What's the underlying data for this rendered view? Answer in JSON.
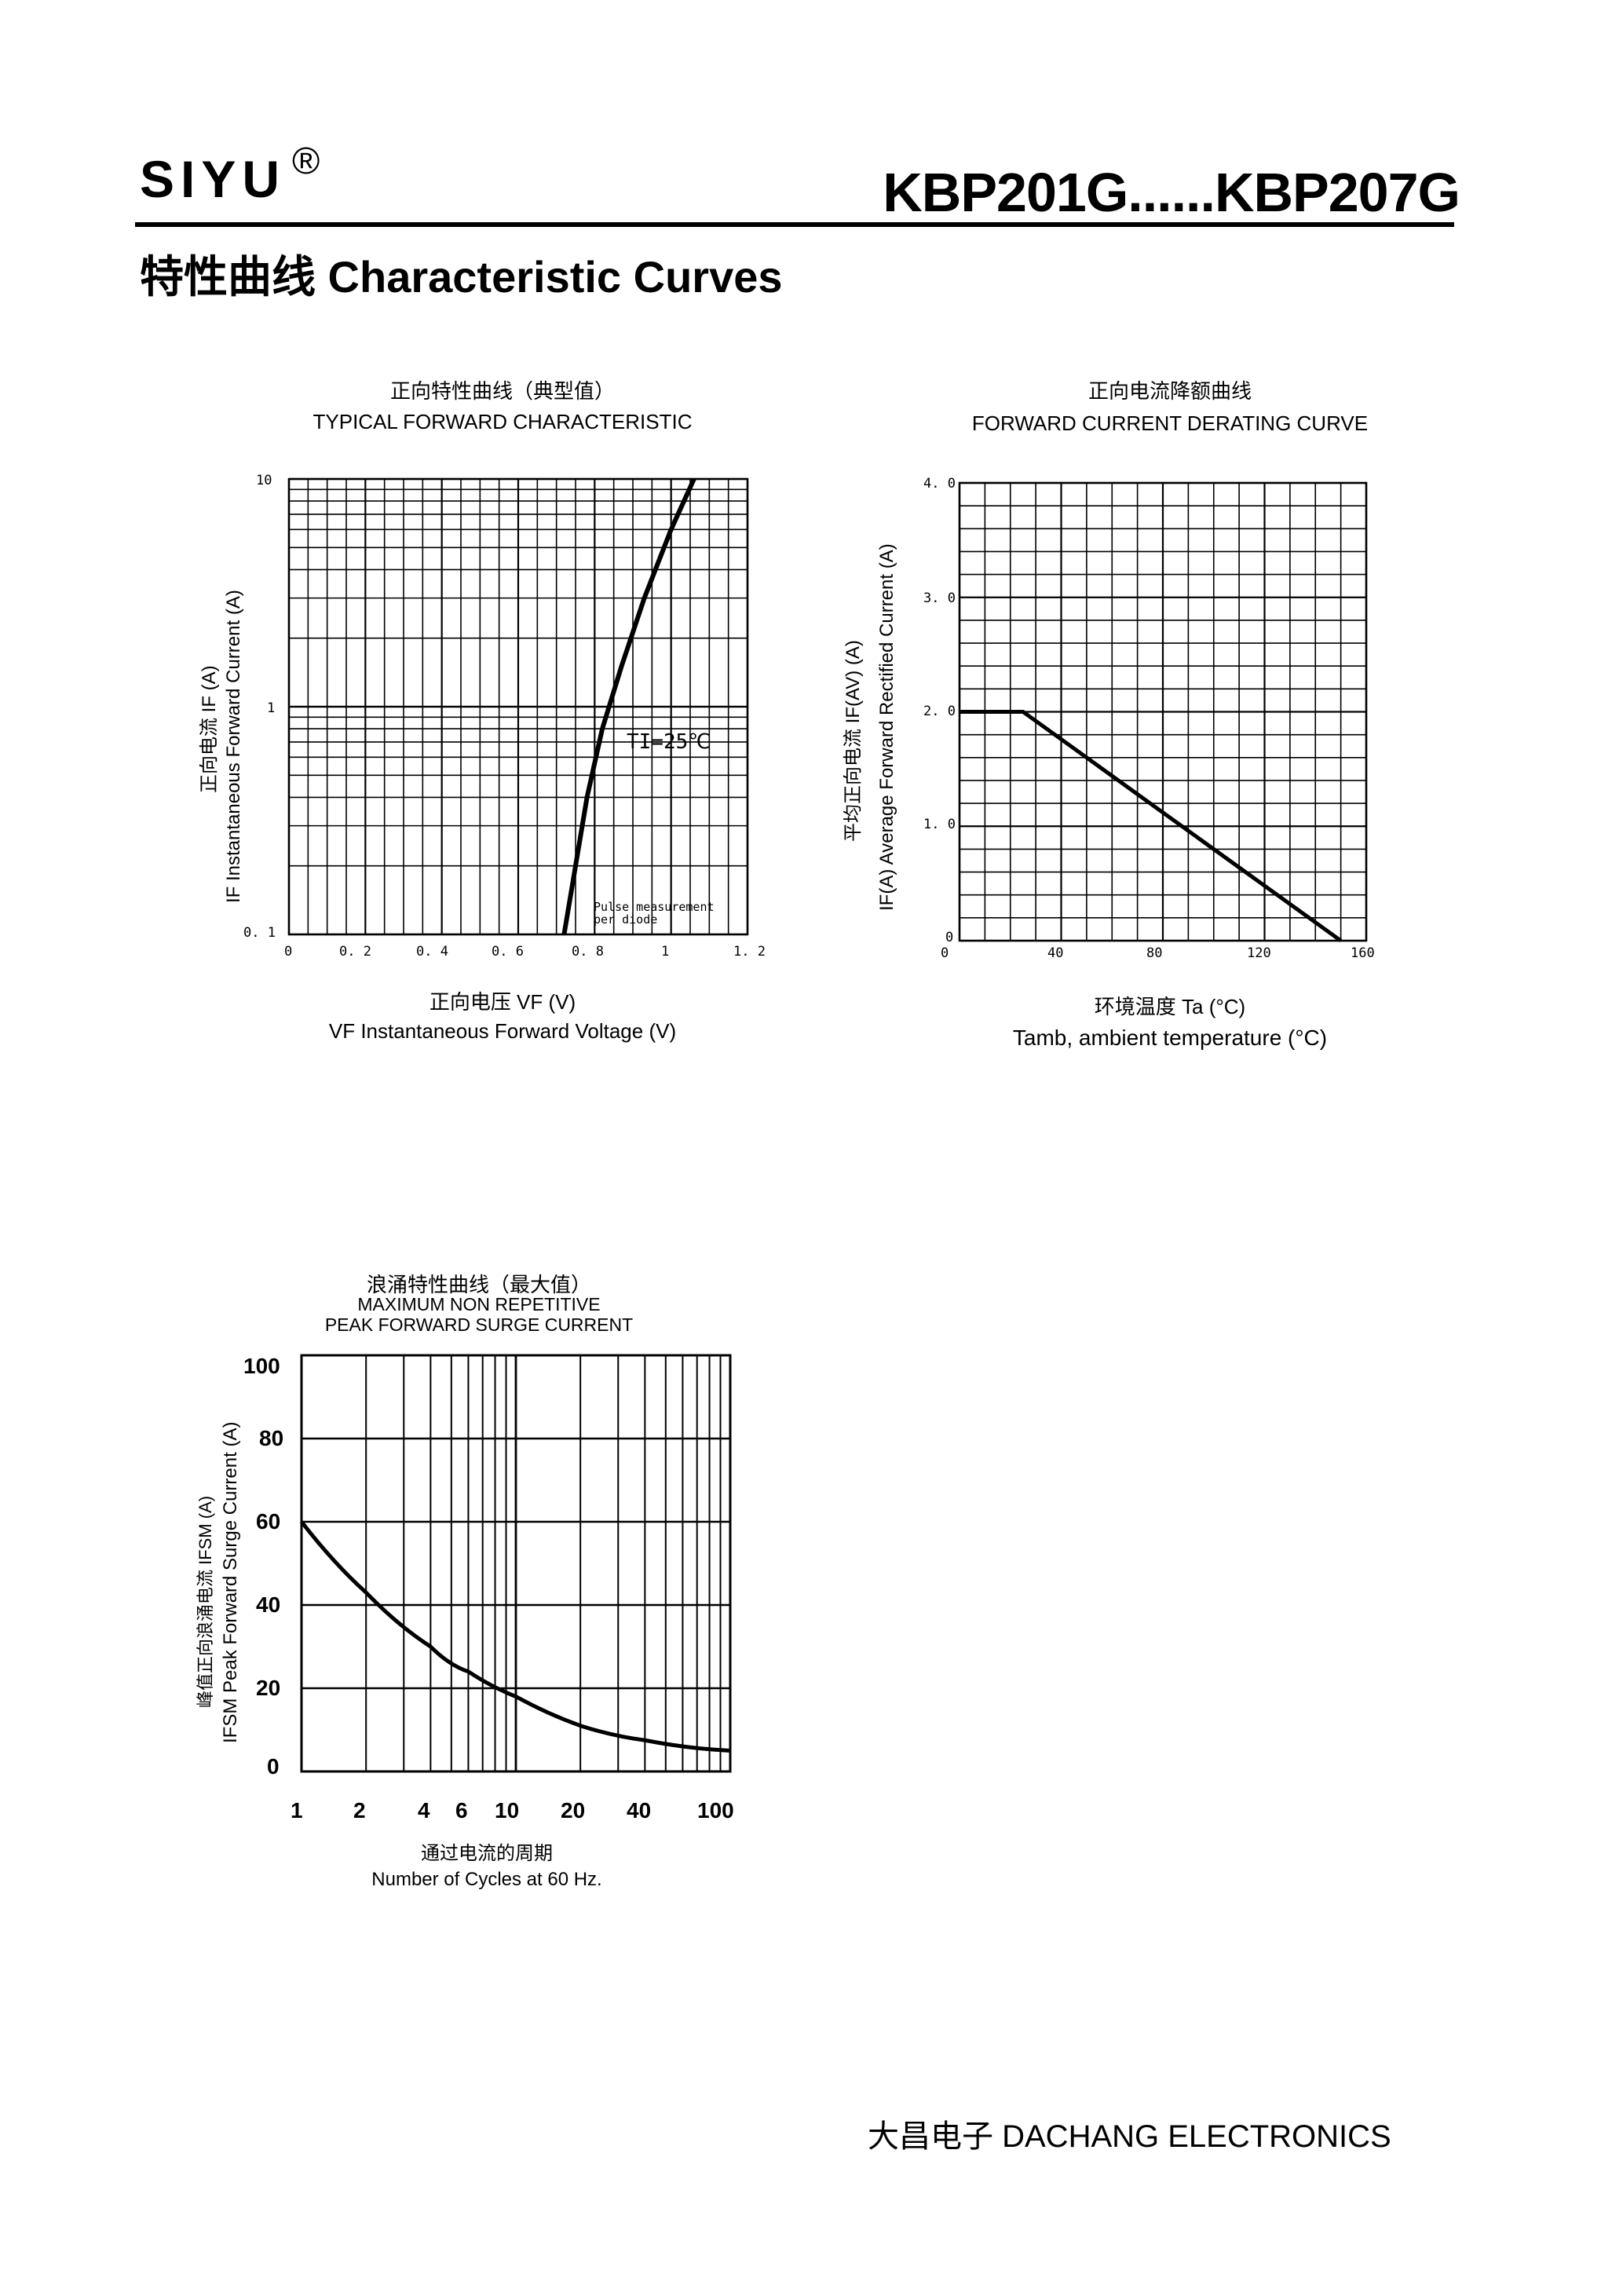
{
  "header": {
    "brand": "SIYU",
    "brand_mark": "®",
    "part_number": "KBP201G......KBP207G"
  },
  "section_title": "特性曲线   Characteristic Curves",
  "footer": "大昌电子   DACHANG ELECTRONICS",
  "chart_data": [
    {
      "type": "line",
      "title_cn": "正向特性曲线（典型值）",
      "title": "TYPICAL FORWARD CHARACTERISTIC",
      "xlabel_cn": "正向电压   VF (V)",
      "xlabel": "VF  Instantaneous Forward Voltage (V)",
      "ylabel_cn": "正向电流    IF (A)",
      "ylabel": "IF Instantaneous Forward Current (A)",
      "xlim": [
        0,
        1.2
      ],
      "ylim": [
        0.1,
        10
      ],
      "yscale": "log",
      "x_ticks": [
        "0",
        "0. 2",
        "0. 4",
        "0. 6",
        "0. 8",
        "1",
        "1. 2"
      ],
      "y_ticks": [
        "0. 1",
        "1",
        "10"
      ],
      "annotations": [
        "TI=25℃",
        "Pulse measurement",
        "per diode"
      ],
      "grid": true,
      "series": [
        {
          "x": [
            0.72,
            0.75,
            0.78,
            0.82,
            0.87,
            0.93,
            1.0,
            1.06
          ],
          "y": [
            0.1,
            0.2,
            0.4,
            0.8,
            1.5,
            3.0,
            6.0,
            10.0
          ]
        }
      ]
    },
    {
      "type": "line",
      "title_cn": "正向电流降额曲线",
      "title": "FORWARD CURRENT DERATING CURVE",
      "xlabel_cn": "环境温度  Ta (°C)",
      "xlabel": "Tamb, ambient temperature (°C)",
      "ylabel_cn": "平均正向电流    IF(AV)  (A)",
      "ylabel": "IF(A)  Average Forward Rectified Current (A)",
      "xlim": [
        0,
        160
      ],
      "ylim": [
        0,
        4.0
      ],
      "x_ticks": [
        "0",
        "40",
        "80",
        "120",
        "160"
      ],
      "y_ticks": [
        "0",
        "1. 0",
        "2. 0",
        "3. 0",
        "4. 0"
      ],
      "grid": true,
      "series": [
        {
          "x": [
            0,
            25,
            150
          ],
          "y": [
            2.0,
            2.0,
            0
          ]
        }
      ]
    },
    {
      "type": "line",
      "title_cn": "浪涌特性曲线（最大值）",
      "title": "MAXIMUM NON REPETITIVE",
      "subtitle": "PEAK FORWARD SURGE CURRENT",
      "xlabel_cn": "通过电流的周期",
      "xlabel": "Number  of  Cycles at 60 Hz.",
      "ylabel_cn": "峰值正向浪涌电流  IFSM (A)",
      "ylabel": "IFSM  Peak Forward Surge Current (A)",
      "xlim": [
        1,
        100
      ],
      "xscale": "log",
      "ylim": [
        0,
        100
      ],
      "x_ticks": [
        "1",
        "2",
        "4",
        "6",
        "10",
        "20",
        "40",
        "100"
      ],
      "y_ticks": [
        "0",
        "20",
        "40",
        "60",
        "80",
        "100"
      ],
      "grid": true,
      "series": [
        {
          "x": [
            1,
            2,
            4,
            6,
            10,
            20,
            40,
            100
          ],
          "y": [
            60,
            43,
            30,
            24,
            18,
            11,
            7.5,
            5
          ]
        }
      ]
    }
  ]
}
